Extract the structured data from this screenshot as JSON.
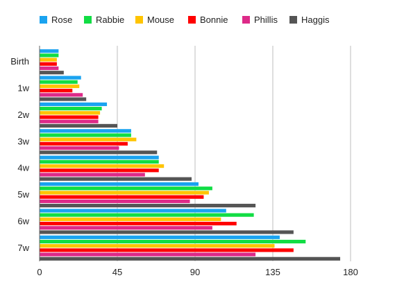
{
  "chart_data": {
    "type": "bar",
    "orientation": "horizontal",
    "categories": [
      "Birth",
      "1w",
      "2w",
      "3w",
      "4w",
      "5w",
      "6w",
      "7w"
    ],
    "series": [
      {
        "name": "Rose",
        "color": "#1aa3f0",
        "values": [
          11,
          24,
          39,
          53,
          69,
          92,
          108,
          139
        ]
      },
      {
        "name": "Rabbie",
        "color": "#11dd44",
        "values": [
          11,
          22,
          36,
          53,
          69,
          100,
          124,
          154
        ]
      },
      {
        "name": "Mouse",
        "color": "#ffc400",
        "values": [
          10,
          23,
          35,
          56,
          72,
          98,
          105,
          136
        ]
      },
      {
        "name": "Bonnie",
        "color": "#ff0000",
        "values": [
          10,
          19,
          34,
          51,
          69,
          95,
          114,
          147
        ]
      },
      {
        "name": "Phillis",
        "color": "#dd2a88",
        "values": [
          11,
          25,
          34,
          46,
          61,
          87,
          100,
          125
        ]
      },
      {
        "name": "Haggis",
        "color": "#555555",
        "values": [
          14,
          27,
          45,
          68,
          88,
          125,
          147,
          174
        ]
      }
    ],
    "xlim": [
      0,
      180
    ],
    "xticks": [
      0,
      45,
      90,
      135,
      180
    ],
    "grid": true,
    "legend_position": "top"
  }
}
